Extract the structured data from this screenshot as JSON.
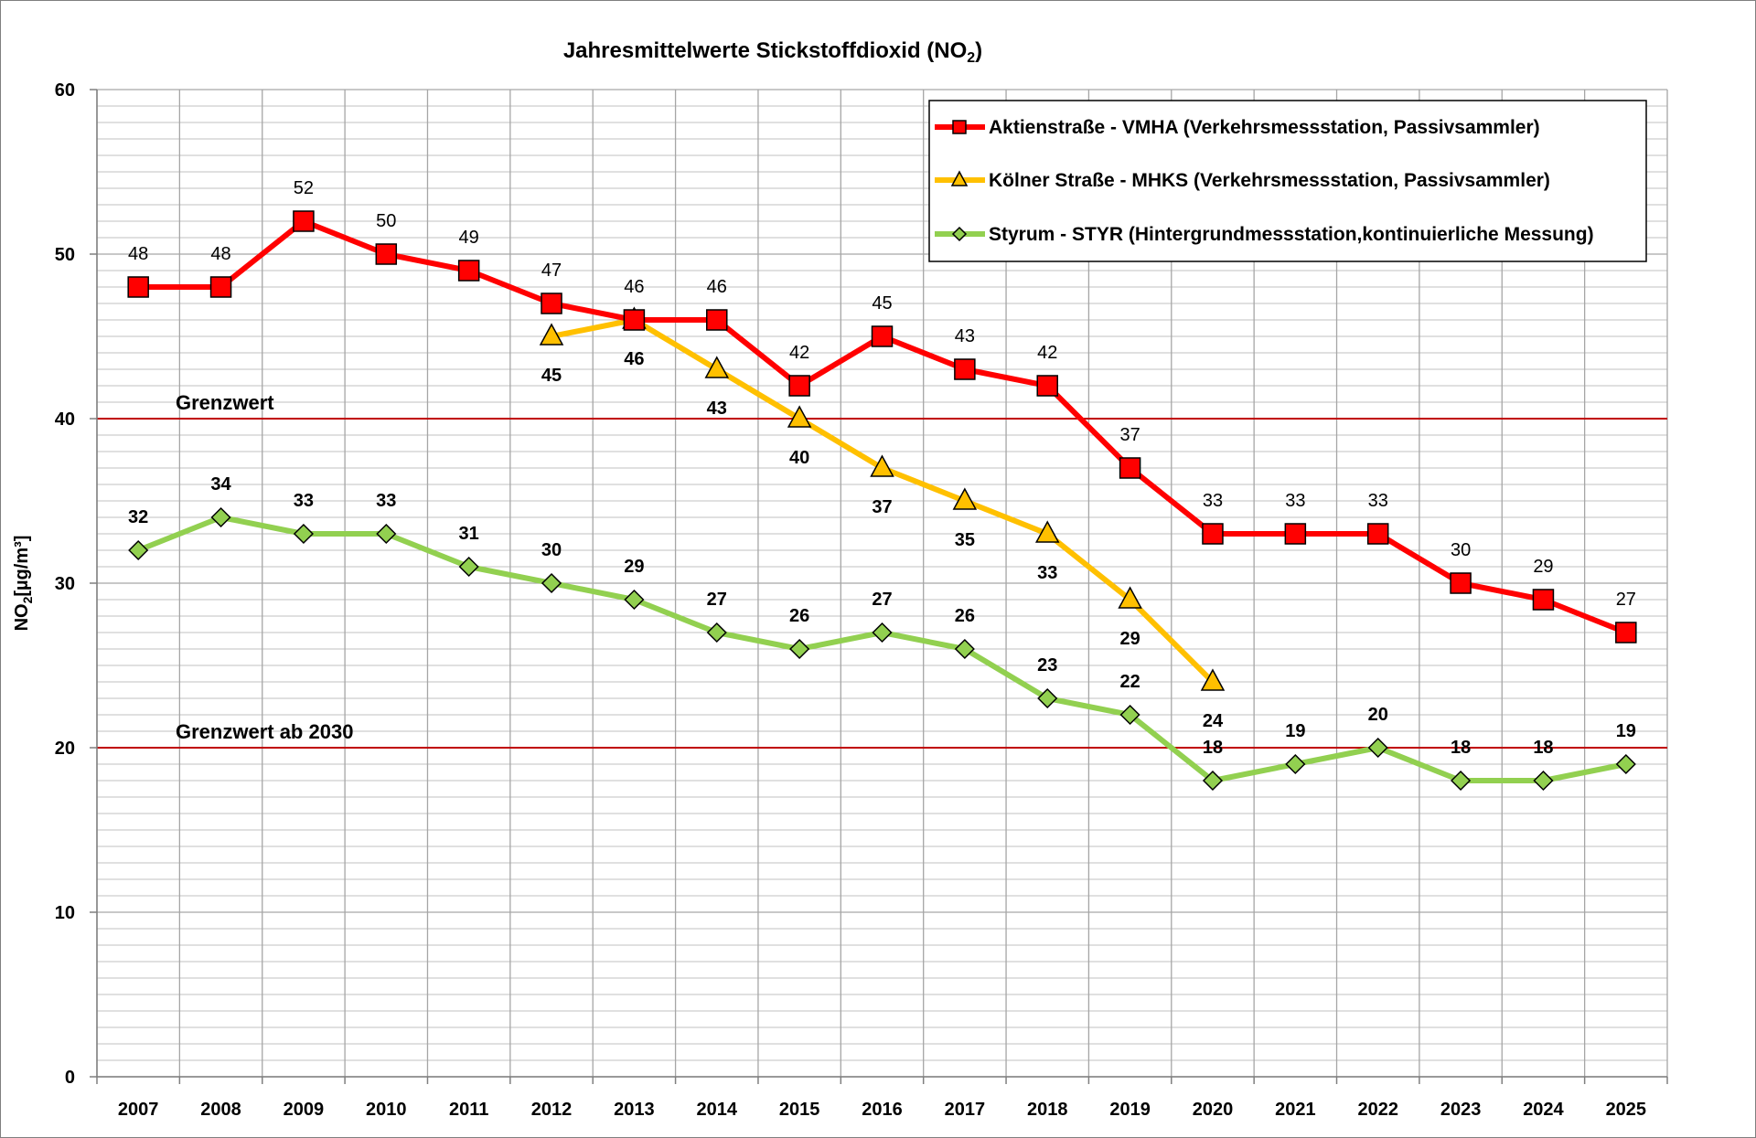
{
  "chart_data": {
    "type": "line",
    "title": "Jahresmittelwerte Stickstoffdioxid (NO",
    "title_sub": "2",
    "title_end": ")",
    "ylabel": "NO",
    "ylabel_sub": "2",
    "ylabel_end": "[µg/m³]",
    "ylim": [
      0,
      60
    ],
    "yticks": [
      0,
      10,
      20,
      30,
      40,
      50,
      60
    ],
    "x": [
      "2007",
      "2008",
      "2009",
      "2010",
      "2011",
      "2012",
      "2013",
      "2014",
      "2015",
      "2016",
      "2017",
      "2018",
      "2019",
      "2020",
      "2021",
      "2022",
      "2023",
      "2024",
      "2025"
    ],
    "grid": true,
    "legend_position": "top-right",
    "series": [
      {
        "name": "Aktienstraße - VMHA (Verkehrsmessstation, Passivsammler)",
        "color": "#ff0000",
        "marker": "square",
        "values": [
          48,
          48,
          52,
          50,
          49,
          47,
          46,
          46,
          42,
          45,
          43,
          42,
          37,
          33,
          33,
          33,
          30,
          29,
          27
        ]
      },
      {
        "name": "Kölner Straße - MHKS (Verkehrsmessstation, Passivsammler)",
        "color": "#ffc000",
        "marker": "triangle",
        "values": [
          null,
          null,
          null,
          null,
          null,
          45,
          46,
          43,
          40,
          37,
          35,
          33,
          29,
          24,
          null,
          null,
          null,
          null,
          null
        ]
      },
      {
        "name": "Styrum - STYR (Hintergrundmessstation,kontinuierliche Messung)",
        "color": "#92d050",
        "marker": "diamond",
        "values": [
          32,
          34,
          33,
          33,
          31,
          30,
          29,
          27,
          26,
          27,
          26,
          23,
          22,
          18,
          19,
          20,
          18,
          18,
          19
        ]
      }
    ],
    "reference_lines": [
      {
        "label": "Grenzwert",
        "value": 40,
        "color": "#c00000"
      },
      {
        "label": "Grenzwert ab 2030",
        "value": 20,
        "color": "#c00000"
      }
    ]
  }
}
